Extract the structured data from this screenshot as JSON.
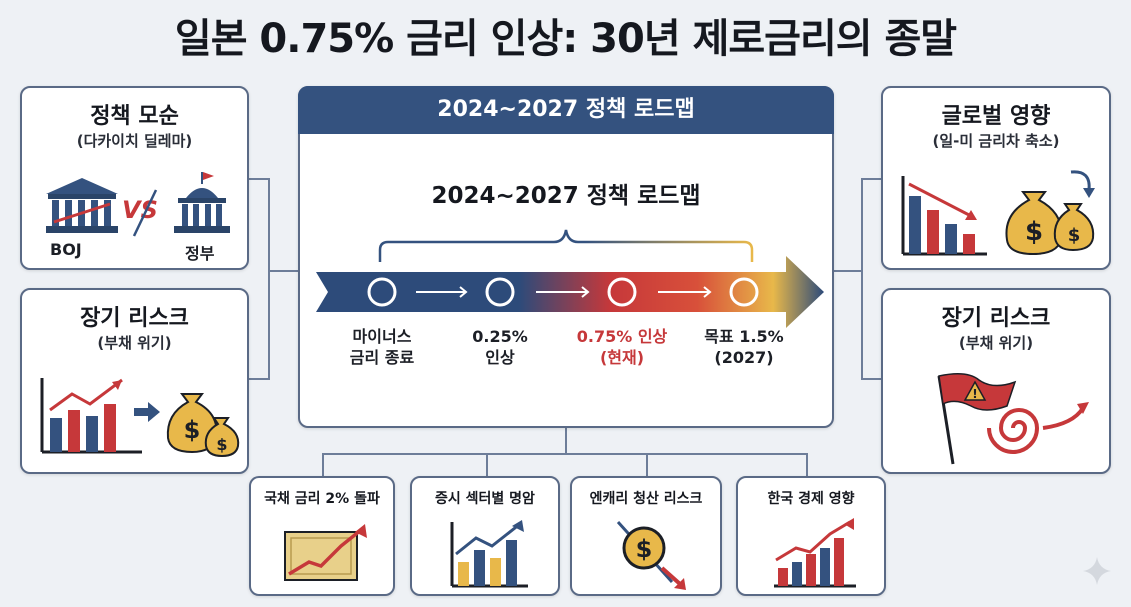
{
  "title": "일본 0.75% 금리 인상: 30년 제로금리의 종말",
  "left_top": {
    "title": "정책 모순",
    "subtitle": "(다카이치 딜레마)",
    "boj_label": "BOJ",
    "vs_label": "VS",
    "gov_label": "정부"
  },
  "left_bottom": {
    "title": "장기 리스크",
    "subtitle": "(부채 위기)"
  },
  "right_top": {
    "title": "글로벌 영향",
    "subtitle": "(일-미 금리차 축소)"
  },
  "right_bottom": {
    "title": "장기 리스크",
    "subtitle": "(부채 위기)"
  },
  "center": {
    "header": "2024~2027 정책 로드맵",
    "roadmap_title": "2024~2027 정책 로드맵",
    "stages": [
      {
        "line1": "마이너스",
        "line2": "금리 종료",
        "color": "#1c1f26"
      },
      {
        "line1": "0.25%",
        "line2": "인상",
        "color": "#1c1f26"
      },
      {
        "line1": "0.75% 인상",
        "line2": "(현재)",
        "color": "#c6383a"
      },
      {
        "line1": "목표 1.5%",
        "line2": "(2027)",
        "color": "#1c1f26"
      }
    ]
  },
  "bottom": [
    {
      "title": "국채 금리 2% 돌파"
    },
    {
      "title": "증시 섹터별 명암"
    },
    {
      "title": "엔캐리 청산 리스크"
    },
    {
      "title": "한국 경제 영향"
    }
  ],
  "colors": {
    "navy": "#34527f",
    "red": "#c6383a",
    "gold": "#e8b84a",
    "border": "#5a6a86"
  }
}
